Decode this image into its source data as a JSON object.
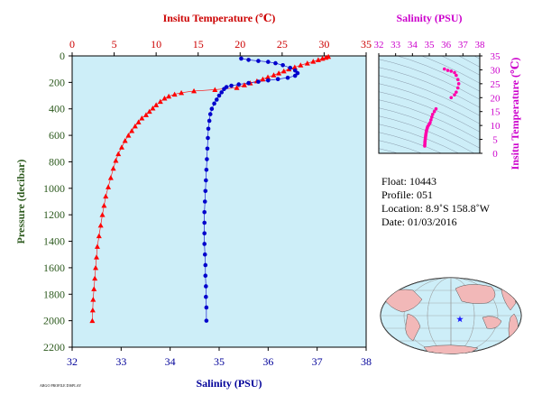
{
  "chart_data": [
    {
      "type": "scatter",
      "xlabel_top": "Insitu Temperature (℃)",
      "xlabel_bottom": "Salinity (PSU)",
      "ylabel": "Pressure (decibar)",
      "y_reversed": true,
      "grid": false,
      "temp_axis": {
        "lim": [
          0,
          35
        ],
        "ticks": [
          0,
          5,
          10,
          15,
          20,
          25,
          30,
          35
        ]
      },
      "sal_axis": {
        "lim": [
          32,
          38
        ],
        "ticks": [
          32,
          33,
          34,
          35,
          36,
          37,
          38
        ]
      },
      "pressure_axis": {
        "lim": [
          0,
          2200
        ],
        "ticks": [
          0,
          200,
          400,
          600,
          800,
          1000,
          1200,
          1400,
          1600,
          1800,
          2000,
          2200
        ]
      },
      "colors": {
        "temperature": "#ff0000",
        "salinity": "#0000cc",
        "axis_top": "#cc0000",
        "axis_bottom": "#000099",
        "axis_left": "#2d5a1e",
        "background": "#cdeef8"
      },
      "series": [
        {
          "name": "Temperature",
          "marker": "triangle",
          "points": [
            [
              30.5,
              5
            ],
            [
              30.2,
              12
            ],
            [
              29.8,
              20
            ],
            [
              29.3,
              30
            ],
            [
              28.7,
              42
            ],
            [
              28.0,
              55
            ],
            [
              27.2,
              70
            ],
            [
              26.5,
              85
            ],
            [
              25.8,
              100
            ],
            [
              25.2,
              115
            ],
            [
              24.6,
              130
            ],
            [
              24.0,
              145
            ],
            [
              23.3,
              160
            ],
            [
              22.7,
              175
            ],
            [
              22.0,
              190
            ],
            [
              21.2,
              205
            ],
            [
              20.5,
              220
            ],
            [
              19.6,
              240
            ],
            [
              17.0,
              255
            ],
            [
              14.5,
              265
            ],
            [
              13.0,
              278
            ],
            [
              12.2,
              290
            ],
            [
              11.5,
              305
            ],
            [
              11.0,
              320
            ],
            [
              10.5,
              345
            ],
            [
              10.0,
              370
            ],
            [
              9.6,
              395
            ],
            [
              9.2,
              420
            ],
            [
              8.8,
              445
            ],
            [
              8.3,
              470
            ],
            [
              7.9,
              500
            ],
            [
              7.5,
              530
            ],
            [
              7.1,
              565
            ],
            [
              6.7,
              600
            ],
            [
              6.3,
              640
            ],
            [
              5.9,
              690
            ],
            [
              5.5,
              740
            ],
            [
              5.2,
              790
            ],
            [
              4.9,
              850
            ],
            [
              4.6,
              920
            ],
            [
              4.3,
              990
            ],
            [
              4.0,
              1060
            ],
            [
              3.8,
              1130
            ],
            [
              3.6,
              1200
            ],
            [
              3.4,
              1280
            ],
            [
              3.2,
              1360
            ],
            [
              3.0,
              1440
            ],
            [
              2.9,
              1520
            ],
            [
              2.8,
              1600
            ],
            [
              2.7,
              1680
            ],
            [
              2.6,
              1760
            ],
            [
              2.5,
              1840
            ],
            [
              2.45,
              1920
            ],
            [
              2.4,
              2000
            ]
          ]
        },
        {
          "name": "Salinity",
          "marker": "dot",
          "points": [
            [
              35.45,
              20
            ],
            [
              35.6,
              30
            ],
            [
              35.8,
              38
            ],
            [
              36.0,
              45
            ],
            [
              36.15,
              55
            ],
            [
              36.3,
              70
            ],
            [
              36.45,
              90
            ],
            [
              36.55,
              110
            ],
            [
              36.6,
              130
            ],
            [
              36.55,
              150
            ],
            [
              36.4,
              165
            ],
            [
              36.2,
              175
            ],
            [
              36.0,
              185
            ],
            [
              35.8,
              195
            ],
            [
              35.6,
              205
            ],
            [
              35.4,
              215
            ],
            [
              35.25,
              225
            ],
            [
              35.15,
              235
            ],
            [
              35.1,
              250
            ],
            [
              35.05,
              275
            ],
            [
              35.0,
              300
            ],
            [
              34.95,
              330
            ],
            [
              34.9,
              360
            ],
            [
              34.85,
              400
            ],
            [
              34.82,
              440
            ],
            [
              34.8,
              490
            ],
            [
              34.78,
              550
            ],
            [
              34.77,
              620
            ],
            [
              34.76,
              700
            ],
            [
              34.75,
              780
            ],
            [
              34.74,
              860
            ],
            [
              34.73,
              940
            ],
            [
              34.72,
              1020
            ],
            [
              34.71,
              1100
            ],
            [
              34.7,
              1180
            ],
            [
              34.7,
              1260
            ],
            [
              34.7,
              1340
            ],
            [
              34.7,
              1420
            ],
            [
              34.71,
              1500
            ],
            [
              34.72,
              1580
            ],
            [
              34.72,
              1660
            ],
            [
              34.73,
              1740
            ],
            [
              34.73,
              1820
            ],
            [
              34.74,
              1900
            ],
            [
              34.74,
              2000
            ]
          ]
        }
      ]
    },
    {
      "type": "scatter",
      "title": "Salinity (PSU)",
      "xlabel": "",
      "ylabel": "Insitu Temperature (℃)",
      "xlim": [
        32,
        38
      ],
      "ylim": [
        0,
        35
      ],
      "x_ticks": [
        32,
        33,
        34,
        35,
        36,
        37,
        38
      ],
      "y_ticks": [
        0,
        5,
        10,
        15,
        20,
        25,
        30,
        35
      ],
      "colors": {
        "points": "#ff00aa",
        "axis": "#cc00cc",
        "background": "#cdeef8",
        "contours": "#8899aa"
      },
      "points": [
        [
          35.9,
          30.3
        ],
        [
          36.1,
          29.8
        ],
        [
          36.3,
          29.5
        ],
        [
          36.5,
          29.0
        ],
        [
          36.6,
          28.0
        ],
        [
          36.7,
          26.5
        ],
        [
          36.75,
          25.0
        ],
        [
          36.7,
          23.5
        ],
        [
          36.6,
          22.0
        ],
        [
          36.5,
          21.0
        ],
        [
          36.3,
          20.0
        ],
        [
          35.4,
          16.0
        ],
        [
          35.3,
          15.0
        ],
        [
          35.2,
          14.0
        ],
        [
          35.15,
          13.0
        ],
        [
          35.1,
          12.0
        ],
        [
          35.05,
          11.0
        ],
        [
          35.0,
          10.5
        ],
        [
          34.95,
          10.0
        ],
        [
          34.9,
          9.5
        ],
        [
          34.88,
          9.0
        ],
        [
          34.85,
          8.5
        ],
        [
          34.83,
          8.0
        ],
        [
          34.82,
          7.5
        ],
        [
          34.8,
          7.0
        ],
        [
          34.79,
          6.5
        ],
        [
          34.78,
          6.0
        ],
        [
          34.77,
          5.5
        ],
        [
          34.76,
          5.0
        ],
        [
          34.75,
          4.5
        ],
        [
          34.74,
          4.0
        ],
        [
          34.74,
          3.5
        ],
        [
          34.73,
          3.0
        ],
        [
          34.73,
          2.6
        ]
      ]
    }
  ],
  "info": {
    "float": "Float:  10443",
    "profile": "Profile:  051",
    "location": "Location:  8.9˚S  158.8˚W",
    "date": "Date:  01/03/2016"
  },
  "map": {
    "marker_color": "#1a1aff",
    "land_color": "#f2b8b8",
    "ocean_color": "#cdeef8"
  },
  "footer_text": "ARGO PROFILE DISPLAY"
}
